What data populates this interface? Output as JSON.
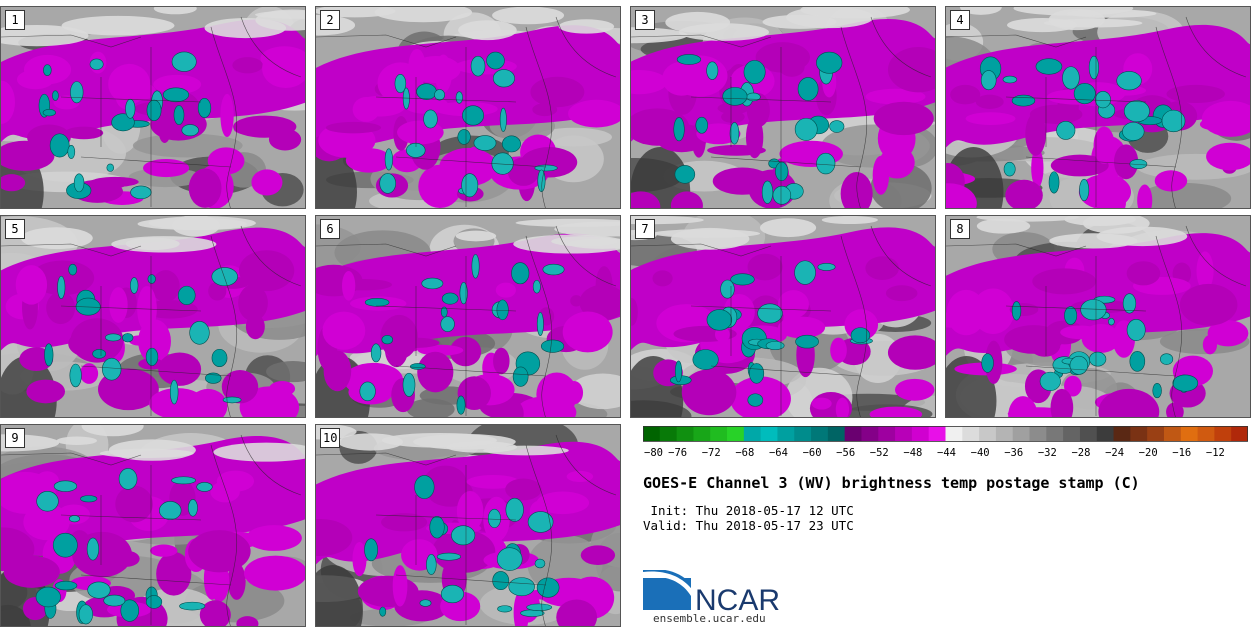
{
  "panels": [
    {
      "label": "1"
    },
    {
      "label": "2"
    },
    {
      "label": "3"
    },
    {
      "label": "4"
    },
    {
      "label": "5"
    },
    {
      "label": "6"
    },
    {
      "label": "7"
    },
    {
      "label": "8"
    },
    {
      "label": "9"
    },
    {
      "label": "10"
    }
  ],
  "colorbar": {
    "colors": [
      "#006400",
      "#087a08",
      "#109010",
      "#18a618",
      "#20bc20",
      "#28d228",
      "#00a8a8",
      "#00bcbc",
      "#00a0a0",
      "#008c8c",
      "#007878",
      "#006464",
      "#6a0070",
      "#840088",
      "#9e00a0",
      "#b800b8",
      "#d000d0",
      "#e810e8",
      "#f0f0f0",
      "#dcdcdc",
      "#c8c8c8",
      "#b4b4b4",
      "#a0a0a0",
      "#8c8c8c",
      "#787878",
      "#646464",
      "#505050",
      "#3c3c3c",
      "#5a2814",
      "#7a3214",
      "#9a4014",
      "#c05814",
      "#e06e10",
      "#d05a10",
      "#c0400c",
      "#b0280a"
    ],
    "ticks": [
      "−80",
      "−76",
      "−72",
      "−68",
      "−64",
      "−60",
      "−56",
      "−52",
      "−48",
      "−44",
      "−40",
      "−36",
      "−32",
      "−28",
      "−24",
      "−20",
      "−16",
      "−12"
    ]
  },
  "title": "GOES-E Channel 3 (WV) brightness temp postage stamp (C)",
  "init": " Init: Thu 2018-05-17 12 UTC",
  "valid": "Valid: Thu 2018-05-17 23 UTC",
  "logo": {
    "text": "NCAR"
  },
  "url": "ensemble.ucar.edu"
}
